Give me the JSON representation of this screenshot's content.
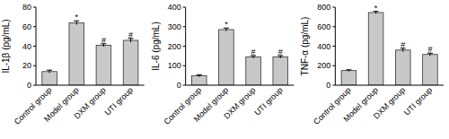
{
  "chart_data": [
    {
      "type": "bar",
      "y_label": "IL-1β (pg/mL)",
      "categories": [
        "Control group",
        "Model group",
        "DXM group",
        "UTI group"
      ],
      "values": [
        14,
        64,
        41,
        46
      ],
      "errors": [
        1.5,
        2,
        1.5,
        2
      ],
      "annotations": [
        null,
        "*",
        "#",
        "#"
      ],
      "color": "#c8c8c8",
      "ylim": [
        0,
        80
      ],
      "yticks": [
        0,
        20,
        40,
        60,
        80
      ]
    },
    {
      "type": "bar",
      "y_label": "IL-6 (pg/mL)",
      "categories": [
        "Control group",
        "Model group",
        "DXM group",
        "UTI group"
      ],
      "values": [
        48,
        285,
        145,
        145
      ],
      "errors": [
        5,
        8,
        7,
        7
      ],
      "annotations": [
        null,
        "*",
        "#",
        "#"
      ],
      "color": "#c8c8c8",
      "ylim": [
        0,
        400
      ],
      "yticks": [
        0,
        100,
        200,
        300,
        400
      ]
    },
    {
      "type": "bar",
      "y_label": "TNF-α (pg/mL)",
      "categories": [
        "Control group",
        "Model group",
        "DXM group",
        "UTI group"
      ],
      "values": [
        150,
        745,
        360,
        315
      ],
      "errors": [
        8,
        12,
        18,
        14
      ],
      "annotations": [
        null,
        "*",
        "#",
        "#"
      ],
      "color": "#c8c8c8",
      "ylim": [
        0,
        800
      ],
      "yticks": [
        0,
        200,
        400,
        600,
        800
      ]
    }
  ]
}
